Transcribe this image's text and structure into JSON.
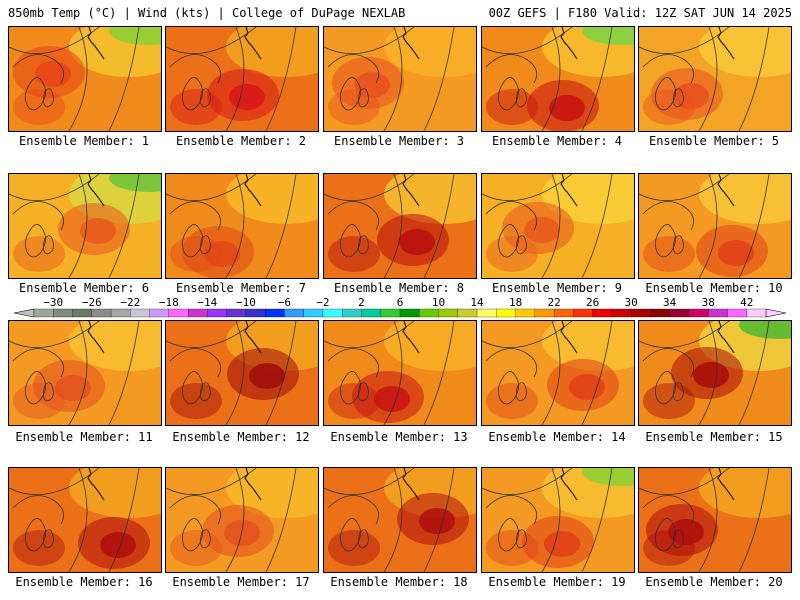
{
  "header": {
    "left": "850mb Temp (°C) | Wind (kts) | College of DuPage NEXLAB",
    "right": "00Z GEFS | F180 Valid: 12Z SAT JUN 14 2025"
  },
  "colorbar": {
    "ticks": [
      "-30",
      "-26",
      "-22",
      "-18",
      "-14",
      "-10",
      "-6",
      "-2",
      "2",
      "6",
      "10",
      "14",
      "18",
      "22",
      "26",
      "30",
      "34",
      "38",
      "42"
    ],
    "colors": [
      "#9aa89a",
      "#7f8c7f",
      "#6a7a6a",
      "#8a8a8a",
      "#a6a6a6",
      "#c8c8d8",
      "#cc99ff",
      "#ff66ff",
      "#cc33cc",
      "#9933ff",
      "#6633cc",
      "#3333cc",
      "#0033ff",
      "#3399ff",
      "#33ccff",
      "#33ffff",
      "#33cccc",
      "#00cc99",
      "#33cc33",
      "#009900",
      "#66cc00",
      "#99cc00",
      "#cccc33",
      "#ffff66",
      "#ffff00",
      "#ffcc00",
      "#ff9900",
      "#ff6600",
      "#ff3300",
      "#ee0000",
      "#cc0000",
      "#aa0000",
      "#880000",
      "#990033",
      "#cc0066",
      "#cc33cc",
      "#ff66ff",
      "#ffccff"
    ]
  },
  "members": [
    {
      "label": "Ensemble Member: 1",
      "base": "#f08a1a",
      "hot": "#e84418",
      "cool": "#f4c430",
      "green": "#9acd32"
    },
    {
      "label": "Ensemble Member: 2",
      "base": "#ec7018",
      "hot": "#d81818",
      "cool": "#f4a520",
      "green": ""
    },
    {
      "label": "Ensemble Member: 3",
      "base": "#f49a22",
      "hot": "#e85020",
      "cool": "#f8b028",
      "green": ""
    },
    {
      "label": "Ensemble Member: 4",
      "base": "#f08a1a",
      "hot": "#c81010",
      "cool": "#f8c030",
      "green": "#8ccf40"
    },
    {
      "label": "Ensemble Member: 5",
      "base": "#f4a424",
      "hot": "#e85020",
      "cool": "#f8c838",
      "green": ""
    },
    {
      "label": "Ensemble Member: 6",
      "base": "#f6b026",
      "hot": "#e8581c",
      "cool": "#d8d840",
      "green": "#7cc43a"
    },
    {
      "label": "Ensemble Member: 7",
      "base": "#f08a1a",
      "hot": "#e04818",
      "cool": "#f8b828",
      "green": ""
    },
    {
      "label": "Ensemble Member: 8",
      "base": "#ec7018",
      "hot": "#b80e0e",
      "cool": "#f8c030",
      "green": ""
    },
    {
      "label": "Ensemble Member: 9",
      "base": "#f6b026",
      "hot": "#e8581c",
      "cool": "#f8d038",
      "green": ""
    },
    {
      "label": "Ensemble Member: 10",
      "base": "#f49a22",
      "hot": "#e04018",
      "cool": "#f8c838",
      "green": ""
    },
    {
      "label": "Ensemble Member: 11",
      "base": "#f49a22",
      "hot": "#e45020",
      "cool": "#f8c030",
      "green": ""
    },
    {
      "label": "Ensemble Member: 12",
      "base": "#ec7018",
      "hot": "#a00c0c",
      "cool": "#f4a520",
      "green": ""
    },
    {
      "label": "Ensemble Member: 13",
      "base": "#f08a1a",
      "hot": "#c81414",
      "cool": "#f8b028",
      "green": ""
    },
    {
      "label": "Ensemble Member: 14",
      "base": "#f49a22",
      "hot": "#e04018",
      "cool": "#f8c030",
      "green": ""
    },
    {
      "label": "Ensemble Member: 15",
      "base": "#f08a1a",
      "hot": "#a80c0c",
      "cool": "#f0d040",
      "green": "#66bb33"
    },
    {
      "label": "Ensemble Member: 16",
      "base": "#ec7018",
      "hot": "#b00e0e",
      "cool": "#f4a520",
      "green": ""
    },
    {
      "label": "Ensemble Member: 17",
      "base": "#f49a22",
      "hot": "#e45020",
      "cool": "#f8b828",
      "green": ""
    },
    {
      "label": "Ensemble Member: 18",
      "base": "#ec7018",
      "hot": "#b00e0e",
      "cool": "#f4a520",
      "green": ""
    },
    {
      "label": "Ensemble Member: 19",
      "base": "#f49a22",
      "hot": "#e04018",
      "cool": "#f8c030",
      "green": "#9acd32"
    },
    {
      "label": "Ensemble Member: 20",
      "base": "#ec7018",
      "hot": "#b00e0e",
      "cool": "#f4a520",
      "green": ""
    }
  ]
}
